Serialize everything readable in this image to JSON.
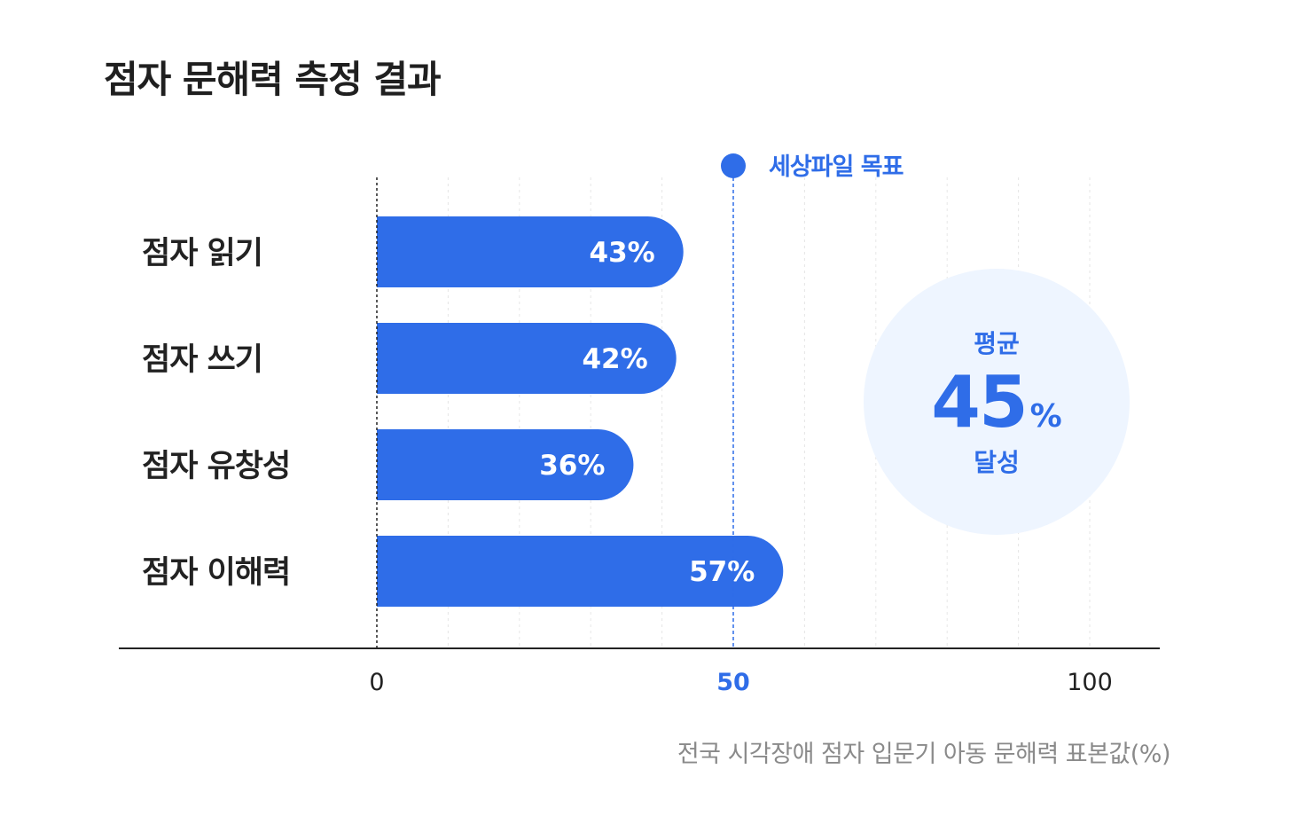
{
  "chart_data": {
    "type": "bar",
    "orientation": "horizontal",
    "title": "점자 문해력 측정 결과",
    "categories": [
      "점자 읽기",
      "점자 쓰기",
      "점자 유창성",
      "점자 이해력"
    ],
    "values": [
      43,
      42,
      36,
      57
    ],
    "value_labels": [
      "43%",
      "42%",
      "36%",
      "57%"
    ],
    "xlim": [
      0,
      100
    ],
    "x_ticks": [
      "0",
      "50",
      "100"
    ],
    "target": {
      "value": 50,
      "label": "세상파일 목표"
    },
    "grid": true,
    "bar_color": "#2f6de8",
    "accent_color": "#2f6de8",
    "average": {
      "top_label": "평균",
      "value": "45",
      "unit": "%",
      "bottom_label": "달성"
    },
    "footnote": "전국 시각장애 점자 입문기 아동 문해력 표본값(%)"
  }
}
